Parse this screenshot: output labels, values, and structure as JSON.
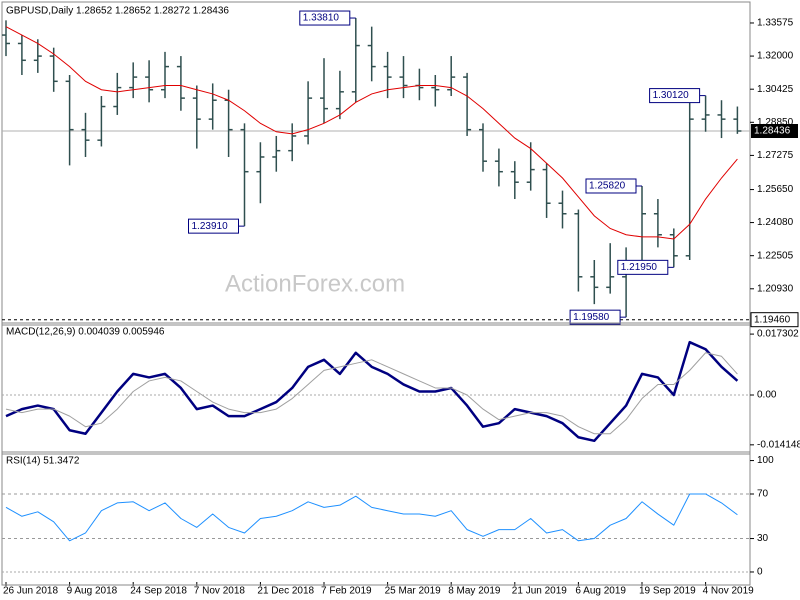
{
  "chart_data": [
    {
      "type": "ohlc",
      "title": "GBPUSD,Daily  1.28652 1.28652 1.28272 1.28436",
      "watermark": "ActionForex.com",
      "categories": [
        "26 Jun 2018",
        null,
        null,
        null,
        "9 Aug 2018",
        null,
        null,
        null,
        "24 Sep 2018",
        null,
        null,
        null,
        "7 Nov 2018",
        null,
        null,
        null,
        "21 Dec 2018",
        null,
        null,
        null,
        "7 Feb 2019",
        null,
        null,
        null,
        "25 Mar 2019",
        null,
        null,
        null,
        "8 May 2019",
        null,
        null,
        null,
        "21 Jun 2019",
        null,
        null,
        null,
        "6 Aug 2019",
        null,
        null,
        null,
        "19 Sep 2019",
        null,
        null,
        null,
        "4 Nov 2019",
        null,
        null
      ],
      "open": [
        1.33,
        1.326,
        1.318,
        1.32,
        1.308,
        1.285,
        1.28,
        1.296,
        1.305,
        1.31,
        1.304,
        1.315,
        1.3,
        1.29,
        1.299,
        1.285,
        1.265,
        1.272,
        1.275,
        1.282,
        1.3,
        1.295,
        1.303,
        1.325,
        1.315,
        1.31,
        1.306,
        1.305,
        1.304,
        1.31,
        1.285,
        1.27,
        1.265,
        1.26,
        1.266,
        1.25,
        1.245,
        1.215,
        1.21,
        1.215,
        1.222,
        1.245,
        1.235,
        1.225,
        1.29,
        1.292,
        1.29
      ],
      "high": [
        1.337,
        1.33,
        1.328,
        1.324,
        1.311,
        1.293,
        1.301,
        1.312,
        1.317,
        1.318,
        1.322,
        1.32,
        1.306,
        1.307,
        1.304,
        1.288,
        1.279,
        1.282,
        1.288,
        1.308,
        1.319,
        1.313,
        1.3381,
        1.334,
        1.322,
        1.32,
        1.314,
        1.311,
        1.32,
        1.312,
        1.288,
        1.276,
        1.27,
        1.279,
        1.269,
        1.256,
        1.247,
        1.223,
        1.231,
        1.229,
        1.2582,
        1.252,
        1.238,
        1.299,
        1.3012,
        1.299,
        1.296
      ],
      "low": [
        1.32,
        1.311,
        1.312,
        1.303,
        1.268,
        1.272,
        1.277,
        1.292,
        1.3,
        1.298,
        1.3,
        1.294,
        1.276,
        1.285,
        1.272,
        1.2391,
        1.25,
        1.265,
        1.27,
        1.278,
        1.288,
        1.29,
        1.298,
        1.308,
        1.3,
        1.3,
        1.299,
        1.296,
        1.301,
        1.282,
        1.265,
        1.258,
        1.252,
        1.256,
        1.243,
        1.238,
        1.208,
        1.202,
        1.207,
        1.1958,
        1.22,
        1.229,
        1.2195,
        1.223,
        1.284,
        1.281,
        1.283
      ],
      "close": [
        1.326,
        1.318,
        1.32,
        1.308,
        1.285,
        1.28,
        1.296,
        1.305,
        1.31,
        1.304,
        1.315,
        1.3,
        1.29,
        1.299,
        1.285,
        1.265,
        1.272,
        1.275,
        1.282,
        1.3,
        1.295,
        1.303,
        1.325,
        1.315,
        1.31,
        1.306,
        1.305,
        1.304,
        1.31,
        1.285,
        1.27,
        1.265,
        1.26,
        1.266,
        1.25,
        1.245,
        1.215,
        1.21,
        1.215,
        1.222,
        1.245,
        1.235,
        1.225,
        1.29,
        1.292,
        1.29,
        1.28436
      ],
      "color": "#2f4f4f",
      "moving_average": {
        "color": "#e00000",
        "values": [
          1.334,
          1.33,
          1.326,
          1.321,
          1.315,
          1.308,
          1.304,
          1.303,
          1.304,
          1.305,
          1.306,
          1.306,
          1.304,
          1.302,
          1.299,
          1.294,
          1.288,
          1.284,
          1.283,
          1.285,
          1.288,
          1.292,
          1.298,
          1.302,
          1.304,
          1.305,
          1.306,
          1.306,
          1.305,
          1.301,
          1.295,
          1.288,
          1.281,
          1.276,
          1.269,
          1.262,
          1.253,
          1.244,
          1.238,
          1.235,
          1.234,
          1.234,
          1.233,
          1.24,
          1.252,
          1.262,
          1.271
        ]
      },
      "annotations": [
        {
          "value": 1.3381,
          "label": "1.33810"
        },
        {
          "value": 1.2391,
          "label": "1.23910"
        },
        {
          "value": 1.3012,
          "label": "1.30120"
        },
        {
          "value": 1.2582,
          "label": "1.25820"
        },
        {
          "value": 1.2195,
          "label": "1.21950"
        },
        {
          "value": 1.1958,
          "label": "1.19580"
        }
      ],
      "hline": {
        "value": 1.1946,
        "label": "1.19460"
      },
      "ylim": [
        1.1935,
        1.3443
      ],
      "yticks": [
        1.33575,
        {
          "value": 1.32,
          "label": "1.32000"
        },
        1.30425,
        {
          "value": 1.2885,
          "label": "1.28850"
        },
        1.27275,
        {
          "value": 1.2565,
          "label": "1.25650"
        },
        {
          "value": 1.2408,
          "label": "1.24080"
        },
        1.22505,
        {
          "value": 1.2093,
          "label": "1.20930"
        }
      ]
    },
    {
      "type": "line",
      "title": "MACD(12,26,9) 0.004039 0.005946",
      "series": [
        {
          "color": "#000080",
          "width": 2.5,
          "values": [
            -0.006,
            -0.004,
            -0.003,
            -0.004,
            -0.01,
            -0.011,
            -0.005,
            0.001,
            0.006,
            0.005,
            0.006,
            0.002,
            -0.004,
            -0.003,
            -0.006,
            -0.006,
            -0.004,
            -0.002,
            0.002,
            0.008,
            0.01,
            0.006,
            0.012,
            0.008,
            0.006,
            0.003,
            0.001,
            0.001,
            0.002,
            -0.003,
            -0.009,
            -0.008,
            -0.004,
            -0.005,
            -0.006,
            -0.008,
            -0.012,
            -0.013,
            -0.008,
            -0.003,
            0.006,
            0.005,
            0.0,
            0.015,
            0.013,
            0.008,
            0.004039
          ]
        },
        {
          "color": "#a0a0a0",
          "width": 1,
          "values": [
            -0.004,
            -0.005,
            -0.004,
            -0.004,
            -0.006,
            -0.009,
            -0.008,
            -0.004,
            0.001,
            0.004,
            0.005,
            0.004,
            0.001,
            -0.002,
            -0.004,
            -0.005,
            -0.005,
            -0.004,
            -0.001,
            0.003,
            0.007,
            0.008,
            0.009,
            0.01,
            0.008,
            0.006,
            0.004,
            0.002,
            0.002,
            0.0,
            -0.004,
            -0.007,
            -0.006,
            -0.005,
            -0.005,
            -0.006,
            -0.009,
            -0.011,
            -0.011,
            -0.007,
            -0.001,
            0.003,
            0.003,
            0.007,
            0.012,
            0.011,
            0.005946
          ]
        }
      ],
      "ylim": [
        -0.0159,
        0.0196
      ],
      "yticks": [
        0.017302,
        {
          "value": 0,
          "label": "0.00"
        },
        -0.014148
      ]
    },
    {
      "type": "line",
      "title": "RSI(14) 51.3472",
      "series": [
        {
          "color": "#1e90ff",
          "width": 1,
          "values": [
            58,
            50,
            54,
            45,
            28,
            35,
            55,
            62,
            63,
            55,
            62,
            48,
            40,
            52,
            40,
            35,
            48,
            50,
            55,
            63,
            58,
            60,
            68,
            58,
            55,
            52,
            52,
            50,
            55,
            38,
            32,
            38,
            38,
            48,
            35,
            38,
            28,
            30,
            42,
            48,
            63,
            52,
            42,
            70,
            70,
            62,
            51.3472
          ]
        }
      ],
      "levels": [
        70,
        30
      ],
      "ylim": [
        -9,
        105
      ],
      "yticks": [
        100,
        70,
        30,
        0
      ]
    }
  ]
}
